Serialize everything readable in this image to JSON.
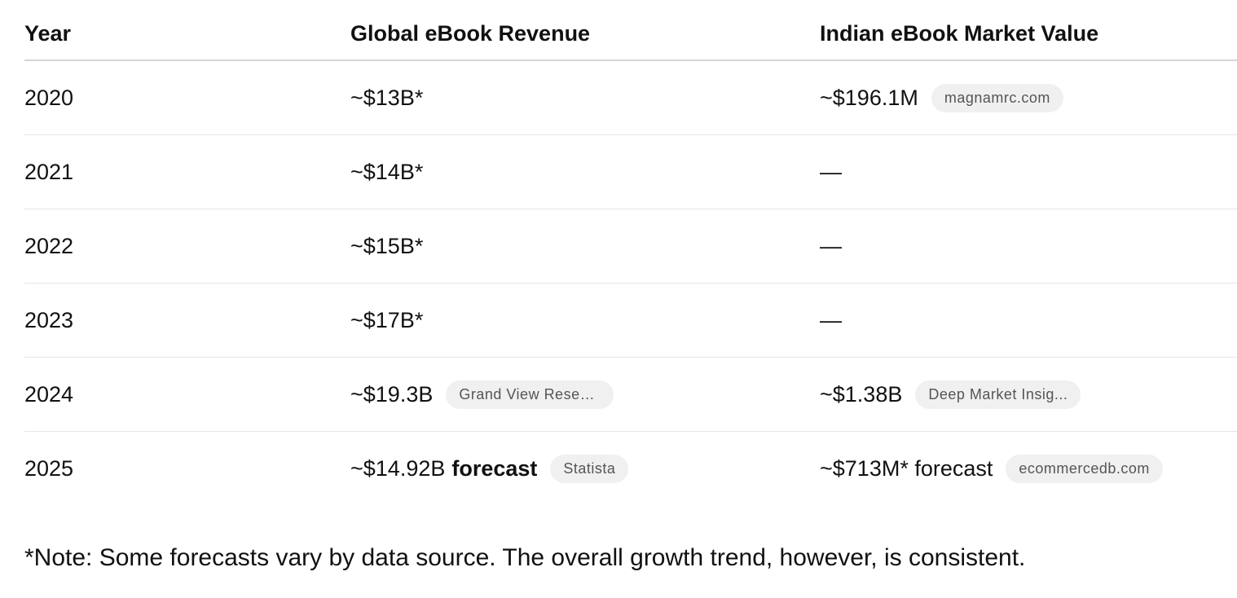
{
  "table": {
    "headers": [
      "Year",
      "Global eBook Revenue",
      "Indian eBook Market Value"
    ],
    "rows": [
      {
        "year": "2020",
        "global": {
          "value": "~$13B*",
          "emphasis": "",
          "source": ""
        },
        "india": {
          "value": "~$196.1M",
          "emphasis": "",
          "source": "magnamrc.com"
        }
      },
      {
        "year": "2021",
        "global": {
          "value": "~$14B*",
          "emphasis": "",
          "source": ""
        },
        "india": {
          "value": "—",
          "emphasis": "",
          "source": ""
        }
      },
      {
        "year": "2022",
        "global": {
          "value": "~$15B*",
          "emphasis": "",
          "source": ""
        },
        "india": {
          "value": "—",
          "emphasis": "",
          "source": ""
        }
      },
      {
        "year": "2023",
        "global": {
          "value": "~$17B*",
          "emphasis": "",
          "source": ""
        },
        "india": {
          "value": "—",
          "emphasis": "",
          "source": ""
        }
      },
      {
        "year": "2024",
        "global": {
          "value": "~$19.3B",
          "emphasis": "",
          "source": "Grand View Resea..."
        },
        "india": {
          "value": "~$1.38B",
          "emphasis": "",
          "source": "Deep Market Insig..."
        }
      },
      {
        "year": "2025",
        "global": {
          "value": "~$14.92B",
          "emphasis": "forecast",
          "source": "Statista"
        },
        "india": {
          "value": "~$713M* forecast",
          "emphasis": "",
          "source": "ecommercedb.com"
        }
      }
    ]
  },
  "note": "*Note: Some forecasts vary by data source. The overall growth trend, however, is consistent.",
  "colors": {
    "badge_background": "#f0f0f0",
    "badge_text": "#555555",
    "row_divider": "#e6e6e6",
    "header_divider": "#d6d6d6"
  }
}
